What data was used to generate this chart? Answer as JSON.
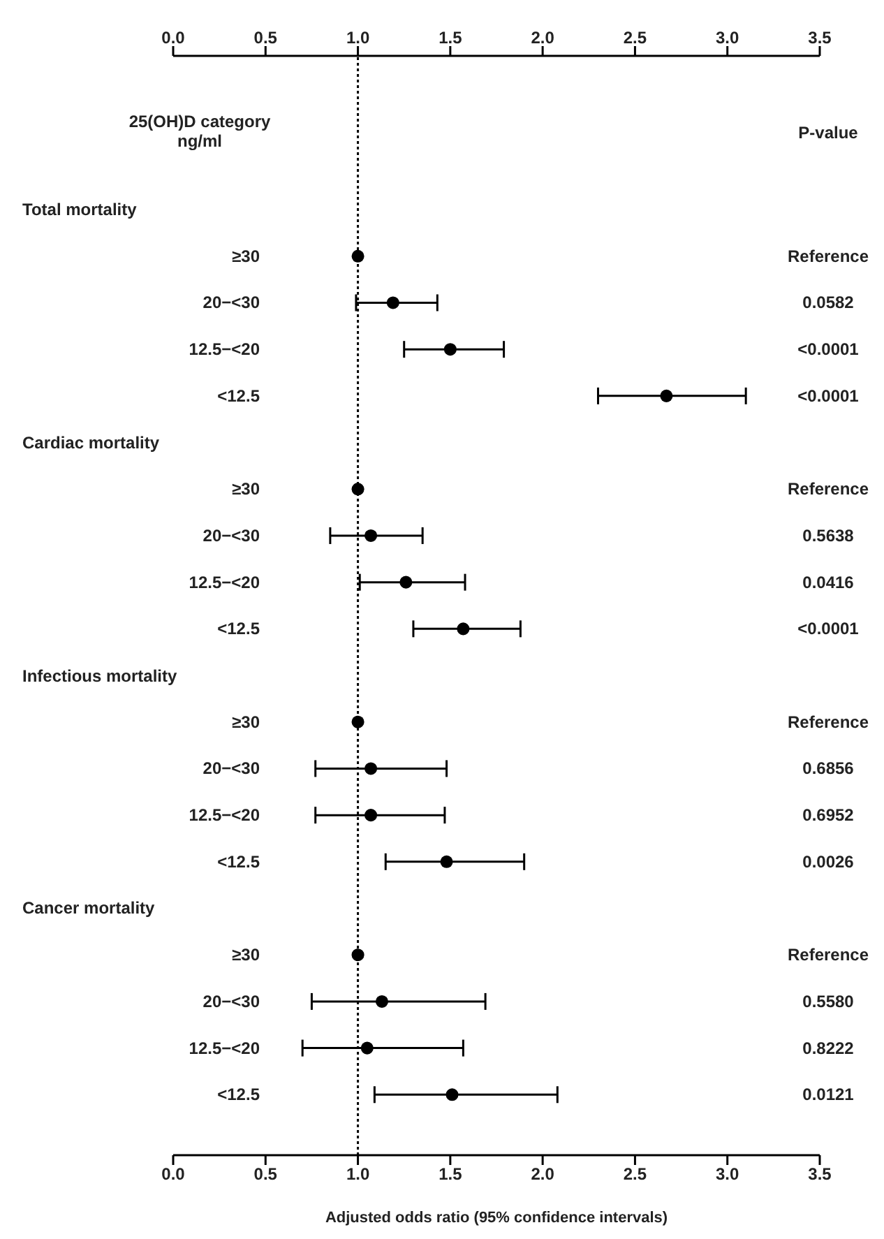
{
  "chart_data": {
    "type": "scatter",
    "orientation": "horizontal",
    "xlabel": "Adjusted odds ratio (95% confidence intervals)",
    "ylabel": "25(OH)D category ng/ml",
    "y2label": "P-value",
    "categories": [
      null,
      "≥30",
      "20−<30",
      "12.5−<20",
      "<12.5",
      null,
      "≥30",
      "20−<30",
      "12.5−<20",
      "<12.5",
      null,
      "≥30",
      "20−<30",
      "12.5−<20",
      "<12.5",
      null,
      "≥30",
      "20−<30",
      "12.5−<20",
      "<12.5"
    ],
    "annotations": [
      "Total mortality",
      "Cardiac mortality",
      "Infectious mortality",
      "Cancer mortality"
    ],
    "y2_categories": [
      null,
      "Reference",
      "0.0582",
      "<0.0001",
      "<0.0001",
      null,
      "Reference",
      "0.5638",
      "0.0416",
      "<0.0001",
      null,
      "Reference",
      "0.6856",
      "0.6952",
      "0.0026",
      null,
      "Reference",
      "0.5580",
      "0.8222",
      "0.0121"
    ],
    "series": [
      {
        "color": "#000000",
        "values": [
          null,
          1,
          1.19,
          1.5,
          2.67,
          null,
          1,
          1.07,
          1.26,
          1.57,
          null,
          1,
          1.07,
          1.07,
          1.48,
          null,
          1,
          1.13,
          1.05,
          1.51
        ],
        "errors": [
          null,
          null,
          [
            0.99,
            1.43
          ],
          [
            1.25,
            1.79
          ],
          [
            2.3,
            3.1
          ],
          null,
          null,
          [
            0.85,
            1.35
          ],
          [
            1.01,
            1.58
          ],
          [
            1.3,
            1.88
          ],
          null,
          null,
          [
            0.77,
            1.48
          ],
          [
            0.77,
            1.47
          ],
          [
            1.15,
            1.9
          ],
          null,
          null,
          [
            0.75,
            1.69
          ],
          [
            0.7,
            1.57
          ],
          [
            1.09,
            2.08
          ]
        ]
      }
    ],
    "xlim": [
      0,
      3.5
    ],
    "xticks": [
      {
        "value": 0,
        "label": "0.0"
      },
      0.5,
      {
        "value": 1,
        "label": "1.0"
      },
      1.5,
      {
        "value": 2,
        "label": "2.0"
      },
      2.5,
      {
        "value": 3,
        "label": "3.0"
      },
      3.5
    ],
    "x2lim": [
      0,
      3.5
    ],
    "x2ticks": [
      {
        "value": 0,
        "label": "0.0"
      },
      0.5,
      {
        "value": 1,
        "label": "1.0"
      },
      1.5,
      {
        "value": 2,
        "label": "2.0"
      },
      2.5,
      {
        "value": 3,
        "label": "3.0"
      },
      3.5
    ],
    "ref_lines": [
      {
        "axis": "x",
        "value": 1,
        "line_style": "dotted",
        "color": "#000000"
      }
    ],
    "marker": "circle",
    "legend": false,
    "grid": false
  }
}
